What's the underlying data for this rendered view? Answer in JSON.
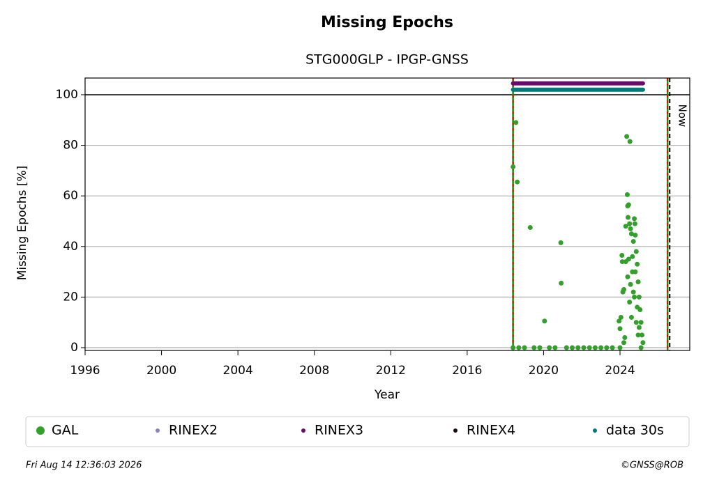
{
  "chart_data": {
    "type": "scatter",
    "title": "Missing Epochs",
    "subtitle": "STG000GLP - IPGP-GNSS",
    "xlabel": "Year",
    "ylabel": "Missing Epochs [%]",
    "xlim": [
      1996,
      2027.65
    ],
    "ylim": [
      -1.1,
      106.6
    ],
    "xticks": [
      1996,
      2000,
      2004,
      2008,
      2012,
      2016,
      2020,
      2024
    ],
    "yticks": [
      0,
      20,
      40,
      60,
      80,
      100
    ],
    "grid": true,
    "vlines": [
      2018.4,
      2026.49
    ],
    "now": {
      "x": 2026.6,
      "label": "Now"
    },
    "series": [
      {
        "name": "GAL",
        "color": "#33a02c",
        "style": "points",
        "x": [
          2018.4,
          2018.4,
          2018.55,
          2018.62,
          2019.3,
          2020.05,
          2020.9,
          2020.92,
          2018.7,
          2019.0,
          2019.5,
          2019.8,
          2020.3,
          2020.6,
          2021.2,
          2021.5,
          2021.8,
          2022.1,
          2022.4,
          2022.7,
          2023.0,
          2023.3,
          2023.6,
          2023.95,
          2024.0,
          2024.05,
          2024.1,
          2024.12,
          2024.15,
          2024.2,
          2024.25,
          2024.3,
          2024.35,
          2024.38,
          2024.4,
          2024.42,
          2024.45,
          2024.5,
          2024.52,
          2024.55,
          2024.6,
          2024.65,
          2024.7,
          2024.75,
          2024.78,
          2024.8,
          2024.85,
          2024.9,
          2024.95,
          2025.0,
          2025.05,
          2025.1,
          2025.15,
          2025.2,
          2024.3,
          2024.4,
          2024.5,
          2024.6,
          2024.7,
          2024.8,
          2024.9,
          2025.0,
          2024.2,
          2024.45,
          2024.55,
          2024.65,
          2024.75,
          2024.85,
          2024.95,
          2025.1,
          2024.0
        ],
        "values": [
          71.5,
          0,
          89,
          65.5,
          47.5,
          10.5,
          41.5,
          25.5,
          0,
          0,
          0,
          0,
          0,
          0,
          0,
          0,
          0,
          0,
          0,
          0,
          0,
          0,
          0,
          10.5,
          7.5,
          12,
          36.5,
          34,
          22,
          23,
          4,
          48,
          83.5,
          60.5,
          56,
          51.5,
          56.5,
          49,
          81.5,
          47,
          45,
          30,
          42,
          51,
          49,
          44.5,
          38,
          33,
          26,
          20,
          15,
          10,
          5,
          2,
          34,
          28,
          18,
          12,
          22,
          30,
          16,
          8,
          2,
          35,
          25,
          36,
          20,
          10,
          5,
          0,
          0
        ]
      },
      {
        "name": "RINEX2",
        "color": "#8a7fbf",
        "style": "band",
        "x": [],
        "values": []
      },
      {
        "name": "RINEX3",
        "color": "#6a0a6a",
        "style": "band",
        "x": [
          2018.4,
          2025.2
        ],
        "values": [
          104.5,
          104.5
        ]
      },
      {
        "name": "RINEX4",
        "color": "#1a0a1a",
        "style": "band",
        "x": [],
        "values": []
      },
      {
        "name": "data 30s",
        "color": "#00797a",
        "style": "band",
        "x": [
          2018.4,
          2025.2
        ],
        "values": [
          102,
          102
        ]
      }
    ],
    "footer_left": "Fri Aug 14 12:36:03 2026",
    "footer_right": "©GNSS@ROB"
  }
}
